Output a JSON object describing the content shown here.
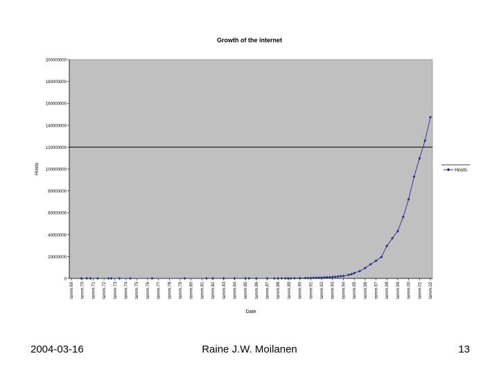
{
  "chart_data": {
    "type": "line",
    "title": "Growth of the internet",
    "xlabel": "Date",
    "ylabel": "Hosts",
    "ylim": [
      0,
      200000000
    ],
    "yticks": [
      0,
      20000000,
      40000000,
      60000000,
      80000000,
      100000000,
      120000000,
      140000000,
      160000000,
      180000000,
      200000000
    ],
    "ytick_labels": [
      "0",
      "20000000",
      "40000000",
      "60000000",
      "80000000",
      "100000000",
      "120000000",
      "140000000",
      "160000000",
      "180000000",
      "200000000"
    ],
    "xlim": [
      "1969-01",
      "2002-01"
    ],
    "xtick_labels": [
      "tammi.69",
      "tammi.70",
      "tammi.71",
      "tammi.72",
      "tammi.73",
      "tammi.74",
      "tammi.75",
      "tammi.76",
      "tammi.77",
      "tammi.78",
      "tammi.79",
      "tammi.80",
      "tammi.81",
      "tammi.82",
      "tammi.83",
      "tammi.84",
      "tammi.85",
      "tammi.86",
      "tammi.87",
      "tammi.88",
      "tammi.89",
      "tammi.90",
      "tammi.91",
      "tammi.92",
      "tammi.93",
      "tammi.94",
      "tammi.95",
      "tammi.96",
      "tammi.97",
      "tammi.98",
      "tammi.99",
      "tammi.00",
      "tammi.01",
      "tammi.02"
    ],
    "reference_line_y": 120000000,
    "plot_background": "#c0c0c0",
    "series_color": "#1f2a8c",
    "legend": {
      "position": "right",
      "entries": [
        "Hosts"
      ]
    },
    "grid": false,
    "series": [
      {
        "name": "Hosts",
        "x": [
          "1969-12",
          "1970-06",
          "1970-10",
          "1971-06",
          "1972-06",
          "1972-09",
          "1973-06",
          "1974-06",
          "1976-06",
          "1979-06",
          "1981-06",
          "1982-01",
          "1983-01",
          "1984-01",
          "1985-01",
          "1985-05",
          "1986-01",
          "1987-01",
          "1987-09",
          "1988-01",
          "1988-05",
          "1988-09",
          "1988-12",
          "1989-03",
          "1989-07",
          "1990-01",
          "1990-07",
          "1990-10",
          "1991-01",
          "1991-04",
          "1991-07",
          "1991-10",
          "1992-01",
          "1992-04",
          "1992-07",
          "1992-10",
          "1993-01",
          "1993-04",
          "1993-07",
          "1993-10",
          "1994-01",
          "1994-07",
          "1994-10",
          "1995-01",
          "1995-07",
          "1996-01",
          "1996-07",
          "1997-01",
          "1997-07",
          "1998-01",
          "1998-07",
          "1999-01",
          "1999-07",
          "2000-01",
          "2000-07",
          "2001-01",
          "2001-07",
          "2002-01"
        ],
        "y": [
          4,
          9,
          11,
          23,
          23,
          31,
          35,
          62,
          63,
          188,
          213,
          235,
          562,
          1024,
          1961,
          1961,
          5089,
          28174,
          28174,
          33000,
          56000,
          56000,
          80000,
          80000,
          130000,
          313000,
          313000,
          313000,
          376000,
          450000,
          535000,
          617000,
          727000,
          890000,
          992000,
          1136000,
          1313000,
          1486000,
          1776000,
          2056000,
          2217000,
          3212000,
          3864000,
          4852000,
          6642000,
          9472000,
          12881000,
          16146000,
          19540000,
          29670000,
          36739000,
          43230000,
          56218000,
          72398000,
          93047000,
          109574000,
          125888000,
          147345000
        ]
      }
    ]
  },
  "footer": {
    "date": "2004-03-16",
    "author": "Raine J.W. Moilanen",
    "page": "13"
  }
}
